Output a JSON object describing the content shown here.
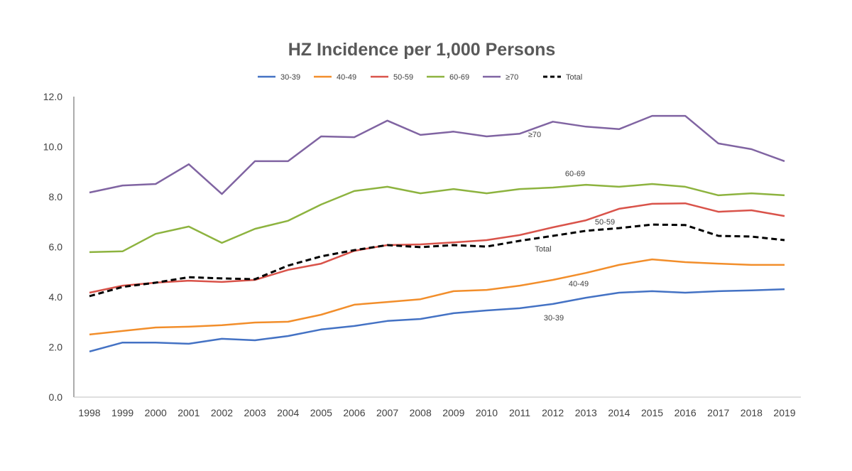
{
  "chart_data": {
    "type": "line",
    "title": "HZ Incidence per 1,000 Persons",
    "xlabel": "",
    "ylabel": "",
    "ylim": [
      0,
      12
    ],
    "yticks": [
      "0.0",
      "2.0",
      "4.0",
      "6.0",
      "8.0",
      "10.0",
      "12.0"
    ],
    "grid": false,
    "legend_position": "top",
    "x": [
      "1998",
      "1999",
      "2000",
      "2001",
      "2002",
      "2003",
      "2004",
      "2005",
      "2006",
      "2007",
      "2008",
      "2009",
      "2010",
      "2011",
      "2012",
      "2013",
      "2014",
      "2015",
      "2016",
      "2017",
      "2018",
      "2019"
    ],
    "series": [
      {
        "name": "30-39",
        "color": "#4472C4",
        "dashed": false,
        "values": [
          1.82,
          2.18,
          2.18,
          2.13,
          2.33,
          2.27,
          2.44,
          2.7,
          2.84,
          3.04,
          3.12,
          3.35,
          3.46,
          3.55,
          3.72,
          3.97,
          4.17,
          4.23,
          4.17,
          4.23,
          4.26,
          4.31
        ]
      },
      {
        "name": "40-49",
        "color": "#F28E2B",
        "dashed": false,
        "values": [
          2.5,
          2.64,
          2.78,
          2.81,
          2.87,
          2.98,
          3.01,
          3.29,
          3.69,
          3.8,
          3.91,
          4.23,
          4.28,
          4.45,
          4.68,
          4.96,
          5.28,
          5.5,
          5.39,
          5.33,
          5.28,
          5.28
        ]
      },
      {
        "name": "50-59",
        "color": "#D9534A",
        "dashed": false,
        "values": [
          4.17,
          4.45,
          4.57,
          4.65,
          4.6,
          4.68,
          5.08,
          5.33,
          5.84,
          6.07,
          6.1,
          6.18,
          6.27,
          6.47,
          6.78,
          7.06,
          7.52,
          7.72,
          7.74,
          7.4,
          7.46,
          7.23
        ]
      },
      {
        "name": "60-69",
        "color": "#8DB33F",
        "dashed": false,
        "values": [
          5.79,
          5.82,
          6.52,
          6.81,
          6.16,
          6.72,
          7.04,
          7.69,
          8.23,
          8.4,
          8.14,
          8.31,
          8.14,
          8.31,
          8.37,
          8.48,
          8.4,
          8.51,
          8.4,
          8.06,
          8.14,
          8.06
        ]
      },
      {
        "name": "≥70",
        "color": "#8064A2",
        "dashed": false,
        "values": [
          8.17,
          8.45,
          8.51,
          9.3,
          8.11,
          9.42,
          9.42,
          10.41,
          10.38,
          11.04,
          10.47,
          10.6,
          10.41,
          10.52,
          11.0,
          10.8,
          10.7,
          11.23,
          11.23,
          10.13,
          9.9,
          9.42
        ]
      },
      {
        "name": "Total",
        "color": "#000000",
        "dashed": true,
        "values": [
          4.03,
          4.4,
          4.57,
          4.79,
          4.74,
          4.71,
          5.25,
          5.62,
          5.87,
          6.07,
          5.99,
          6.07,
          6.01,
          6.24,
          6.44,
          6.64,
          6.75,
          6.89,
          6.87,
          6.44,
          6.41,
          6.27
        ]
      }
    ]
  }
}
